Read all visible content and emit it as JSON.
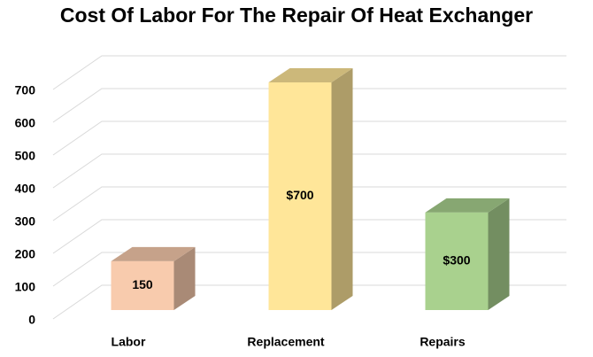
{
  "chart_data": {
    "type": "bar3d",
    "title": "Cost Of Labor For The Repair Of Heat Exchanger",
    "categories": [
      "Labor",
      "Replacement",
      "Repairs"
    ],
    "values": [
      150,
      700,
      300
    ],
    "value_labels": [
      "150",
      "$700",
      "$300"
    ],
    "colors": [
      "#f8cbad",
      "#ffe699",
      "#a9d18e"
    ],
    "ylim": [
      0,
      700
    ],
    "yticks": [
      0,
      100,
      200,
      300,
      400,
      500,
      600,
      700
    ],
    "grid": true
  }
}
